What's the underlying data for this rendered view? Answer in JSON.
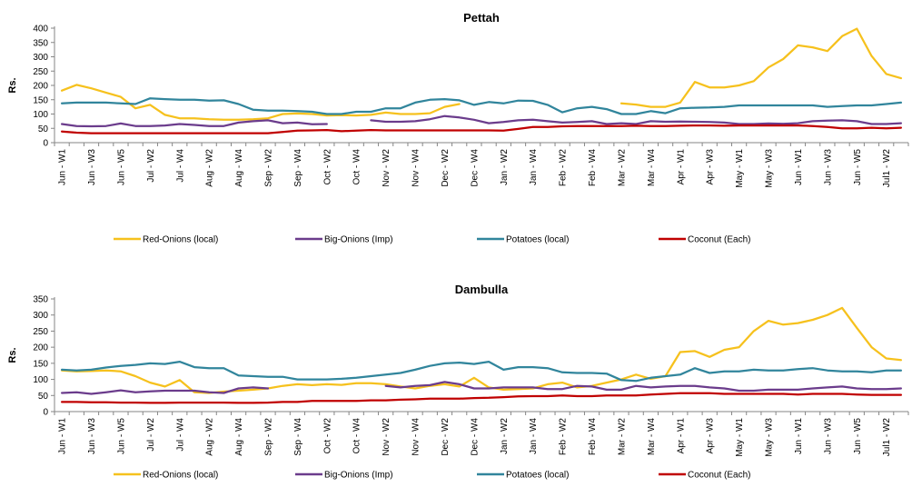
{
  "chart_data": [
    {
      "type": "line",
      "title": "Pettah",
      "xlabel": "",
      "ylabel": "Rs.",
      "ylim": [
        0,
        400
      ],
      "yticks": [
        0,
        50,
        100,
        150,
        200,
        250,
        300,
        350,
        400
      ],
      "grid": false,
      "legend": "bottom",
      "x": [
        "Jun - W1",
        "Jun - W2",
        "Jun - W3",
        "Jun - W4",
        "Jun - W5",
        "Jul - W1",
        "Jul - W2",
        "Jul - W3",
        "Jul - W4",
        "Aug - W1",
        "Aug - W2",
        "Aug - W3",
        "Aug - W4",
        "Sep - W1",
        "Sep - W2",
        "Sep - W3",
        "Sep - W4",
        "Oct - W1",
        "Oct - W2",
        "Oct - W3",
        "Oct - W4",
        "Nov - W1",
        "Nov - W2",
        "Nov - W3",
        "Nov - W4",
        "Dec - W1",
        "Dec - W2",
        "Dec - W3",
        "Dec - W4",
        "Jan - W1",
        "Jan - W2",
        "Jan - W3",
        "Jan - W4",
        "Feb - W1",
        "Feb - W2",
        "Feb - W3",
        "Feb - W4",
        "Mar - W1",
        "Mar - W2",
        "Mar - W3",
        "Mar - W4",
        "Mar - W5",
        "Apr - W1",
        "Apr - W2",
        "Apr - W3",
        "Apr - W4",
        "May - W1",
        "May - W2",
        "May - W3",
        "May - W4",
        "Jun - W1",
        "Jun - W2",
        "Jun - W3",
        "Jun - W4",
        "Jun - W5",
        "Jul1 - W1",
        "Jul1 - W2",
        "Jul1 - W3"
      ],
      "x_tick_labels": [
        "Jun - W1",
        "Jun - W3",
        "Jun - W5",
        "Jul - W2",
        "Jul - W4",
        "Aug - W2",
        "Aug - W4",
        "Sep - W2",
        "Sep - W4",
        "Oct - W2",
        "Oct - W4",
        "Nov - W2",
        "Nov - W4",
        "Dec - W2",
        "Dec - W4",
        "Jan - W2",
        "Jan - W4",
        "Feb - W2",
        "Feb - W4",
        "Mar - W2",
        "Mar - W4",
        "Apr - W1",
        "Apr - W3",
        "May - W1",
        "May - W3",
        "Jun - W1",
        "Jun - W3",
        "Jun - W5",
        "Jul1 - W2"
      ],
      "series": [
        {
          "name": "Red-Onions (local)",
          "color": "#f6c11d",
          "values": [
            182,
            202,
            190,
            175,
            160,
            120,
            132,
            97,
            85,
            85,
            82,
            80,
            80,
            82,
            85,
            100,
            102,
            100,
            95,
            96,
            95,
            97,
            105,
            100,
            100,
            103,
            125,
            135,
            null,
            null,
            null,
            null,
            null,
            null,
            null,
            null,
            null,
            null,
            137,
            133,
            125,
            125,
            140,
            212,
            193,
            193,
            200,
            215,
            263,
            292,
            340,
            333,
            320,
            372,
            398,
            303,
            240,
            225
          ]
        },
        {
          "name": "Big-Onions (Imp)",
          "color": "#6b3c8c",
          "values": [
            65,
            58,
            57,
            58,
            67,
            58,
            58,
            60,
            65,
            62,
            58,
            58,
            70,
            75,
            78,
            68,
            70,
            64,
            65,
            null,
            null,
            78,
            73,
            73,
            75,
            82,
            93,
            88,
            80,
            68,
            72,
            78,
            80,
            75,
            70,
            72,
            75,
            65,
            68,
            65,
            75,
            73,
            74,
            73,
            72,
            70,
            65,
            65,
            67,
            66,
            68,
            75,
            77,
            78,
            75,
            65,
            65,
            68
          ]
        },
        {
          "name": "Potatoes (local)",
          "color": "#31859c",
          "values": [
            137,
            140,
            140,
            140,
            137,
            135,
            155,
            152,
            150,
            150,
            147,
            148,
            135,
            115,
            112,
            112,
            110,
            108,
            100,
            100,
            108,
            108,
            120,
            120,
            140,
            150,
            152,
            148,
            132,
            142,
            137,
            147,
            146,
            132,
            106,
            120,
            125,
            117,
            100,
            100,
            110,
            103,
            120,
            122,
            123,
            125,
            130,
            130,
            130,
            130,
            130,
            130,
            125,
            128,
            130,
            130,
            135,
            140
          ]
        },
        {
          "name": "Coconut (Each)",
          "color": "#c00000",
          "values": [
            39,
            35,
            33,
            33,
            33,
            33,
            33,
            33,
            33,
            33,
            33,
            33,
            33,
            33,
            33,
            37,
            42,
            43,
            44,
            40,
            42,
            44,
            43,
            43,
            43,
            43,
            43,
            43,
            43,
            43,
            42,
            48,
            55,
            55,
            57,
            58,
            58,
            58,
            58,
            59,
            58,
            58,
            59,
            60,
            60,
            59,
            60,
            60,
            60,
            60,
            60,
            58,
            55,
            50,
            50,
            52,
            50,
            52
          ]
        }
      ]
    },
    {
      "type": "line",
      "title": "Dambulla",
      "xlabel": "",
      "ylabel": "Rs.",
      "ylim": [
        0,
        350
      ],
      "yticks": [
        0,
        50,
        100,
        150,
        200,
        250,
        300,
        350
      ],
      "grid": false,
      "legend": "bottom",
      "x": [
        "Jun - W1",
        "Jun - W2",
        "Jun - W3",
        "Jun - W4",
        "Jun - W5",
        "Jul - W1",
        "Jul - W2",
        "Jul - W3",
        "Jul - W4",
        "Aug - W1",
        "Aug - W2",
        "Aug - W3",
        "Aug - W4",
        "Sep - W1",
        "Sep - W2",
        "Sep - W3",
        "Sep - W4",
        "Oct - W1",
        "Oct - W2",
        "Oct - W3",
        "Oct - W4",
        "Nov - W1",
        "Nov - W2",
        "Nov - W3",
        "Nov - W4",
        "Dec - W1",
        "Dec - W2",
        "Dec - W3",
        "Dec - W4",
        "Jan - W1",
        "Jan - W2",
        "Jan - W3",
        "Jan - W4",
        "Feb - W1",
        "Feb - W2",
        "Feb - W3",
        "Feb - W4",
        "Mar - W1",
        "Mar - W2",
        "Mar - W3",
        "Mar - W4",
        "Mar - W5",
        "Apr - W1",
        "Apr - W2",
        "Apr - W3",
        "Apr - W4",
        "May - W1",
        "May - W2",
        "May - W3",
        "May - W4",
        "Jun - W1",
        "Jun - W2",
        "Jun - W3",
        "Jun - W4",
        "Jun - W5",
        "Jul1 - W1",
        "Jul1 - W2",
        "Jul1 - W3"
      ],
      "x_tick_labels": [
        "Jun - W1",
        "Jun - W3",
        "Jun - W5",
        "Jul - W2",
        "Jul - W4",
        "Aug - W2",
        "Aug - W4",
        "Sep - W2",
        "Sep - W4",
        "Oct - W2",
        "Oct - W4",
        "Nov - W2",
        "Nov - W4",
        "Dec - W2",
        "Dec - W4",
        "Jan - W2",
        "Jan - W4",
        "Feb - W2",
        "Feb - W4",
        "Mar - W2",
        "Mar - W4",
        "Apr - W1",
        "Apr - W3",
        "May - W1",
        "May - W3",
        "Jun - W1",
        "Jun - W3",
        "Jun - W5",
        "Jul1 - W2"
      ],
      "series": [
        {
          "name": "Red-Onions (local)",
          "color": "#f6c11d",
          "values": [
            128,
            125,
            126,
            128,
            125,
            110,
            90,
            78,
            98,
            60,
            58,
            62,
            65,
            68,
            72,
            80,
            85,
            82,
            85,
            83,
            88,
            88,
            85,
            78,
            72,
            80,
            85,
            78,
            105,
            75,
            68,
            70,
            72,
            85,
            90,
            75,
            80,
            90,
            100,
            115,
            102,
            110,
            185,
            188,
            170,
            192,
            200,
            250,
            282,
            270,
            275,
            285,
            300,
            322,
            260,
            200,
            165,
            160
          ]
        },
        {
          "name": "Big-Onions (Imp)",
          "color": "#6b3c8c",
          "values": [
            58,
            60,
            55,
            60,
            66,
            60,
            63,
            65,
            65,
            65,
            60,
            58,
            72,
            75,
            72,
            null,
            null,
            null,
            null,
            null,
            null,
            null,
            80,
            75,
            80,
            82,
            92,
            85,
            72,
            72,
            75,
            75,
            75,
            70,
            70,
            80,
            78,
            68,
            68,
            80,
            75,
            78,
            80,
            80,
            75,
            72,
            65,
            65,
            68,
            68,
            68,
            72,
            75,
            78,
            72,
            70,
            70,
            72
          ]
        },
        {
          "name": "Potatoes (local)",
          "color": "#31859c",
          "values": [
            130,
            128,
            130,
            137,
            142,
            145,
            150,
            148,
            155,
            138,
            135,
            135,
            112,
            110,
            108,
            108,
            100,
            100,
            100,
            102,
            105,
            110,
            115,
            120,
            130,
            142,
            150,
            152,
            148,
            155,
            130,
            138,
            138,
            135,
            122,
            120,
            120,
            118,
            98,
            95,
            105,
            110,
            115,
            135,
            120,
            125,
            125,
            130,
            128,
            128,
            132,
            135,
            128,
            125,
            125,
            122,
            128,
            128
          ]
        },
        {
          "name": "Coconut (Each)",
          "color": "#c00000",
          "values": [
            30,
            30,
            29,
            29,
            28,
            28,
            27,
            27,
            28,
            28,
            28,
            28,
            27,
            27,
            28,
            30,
            30,
            33,
            33,
            33,
            33,
            35,
            35,
            37,
            38,
            40,
            40,
            40,
            42,
            43,
            45,
            47,
            48,
            48,
            50,
            48,
            48,
            50,
            50,
            50,
            53,
            55,
            57,
            57,
            57,
            55,
            55,
            55,
            55,
            55,
            53,
            55,
            55,
            55,
            53,
            52,
            52,
            52
          ]
        }
      ]
    }
  ]
}
